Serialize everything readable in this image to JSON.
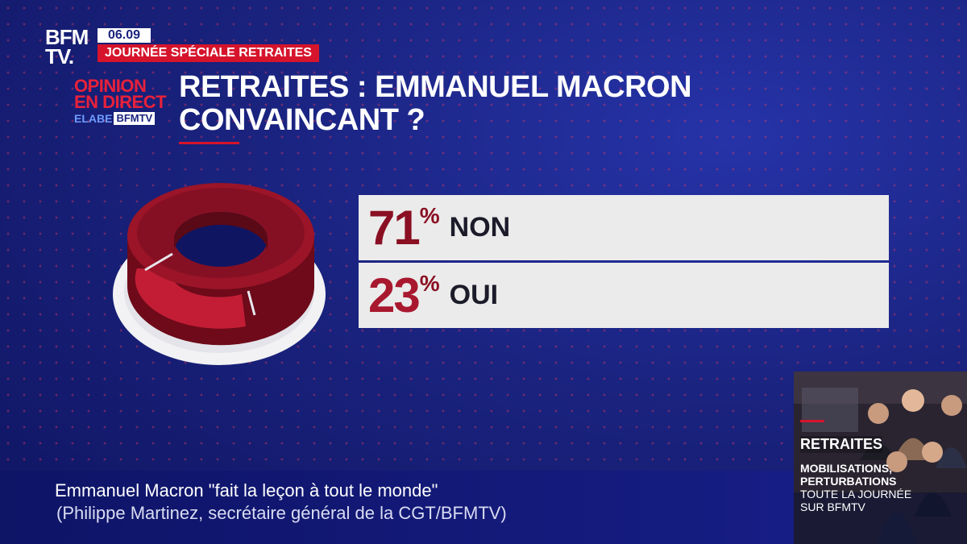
{
  "logo": {
    "line1": "BFM",
    "line2": "TV."
  },
  "clock": "06.09",
  "banner": "JOURNÉE SPÉCIALE RETRAITES",
  "opinion_badge": {
    "line1": "OPINION",
    "line2": "EN DIRECT",
    "elabe": "ELABE",
    "bfmtv": "BFMTV"
  },
  "headline": {
    "line1": "RETRAITES : EMMANUEL MACRON",
    "line2": "CONVAINCANT ?"
  },
  "results": [
    {
      "value": "71",
      "unit": "%",
      "label": "NON",
      "fraction": 0.71
    },
    {
      "value": "23",
      "unit": "%",
      "label": "OUI",
      "fraction": 0.23
    }
  ],
  "colors": {
    "non": "#8a0f22",
    "oui": "#a8182e",
    "accent": "#d6142c",
    "bg": "#1a237f"
  },
  "ticker": {
    "quote": "Emmanuel Macron \"fait la leçon à tout le monde\"",
    "source": "(Philippe Martinez, secrétaire général de la CGT/BFMTV)"
  },
  "promo": {
    "title": "RETRAITES",
    "line1": "MOBILISATIONS,",
    "line2": "PERTURBATIONS",
    "line3": "TOUTE LA JOURNÉE",
    "line4": "SUR BFMTV"
  }
}
